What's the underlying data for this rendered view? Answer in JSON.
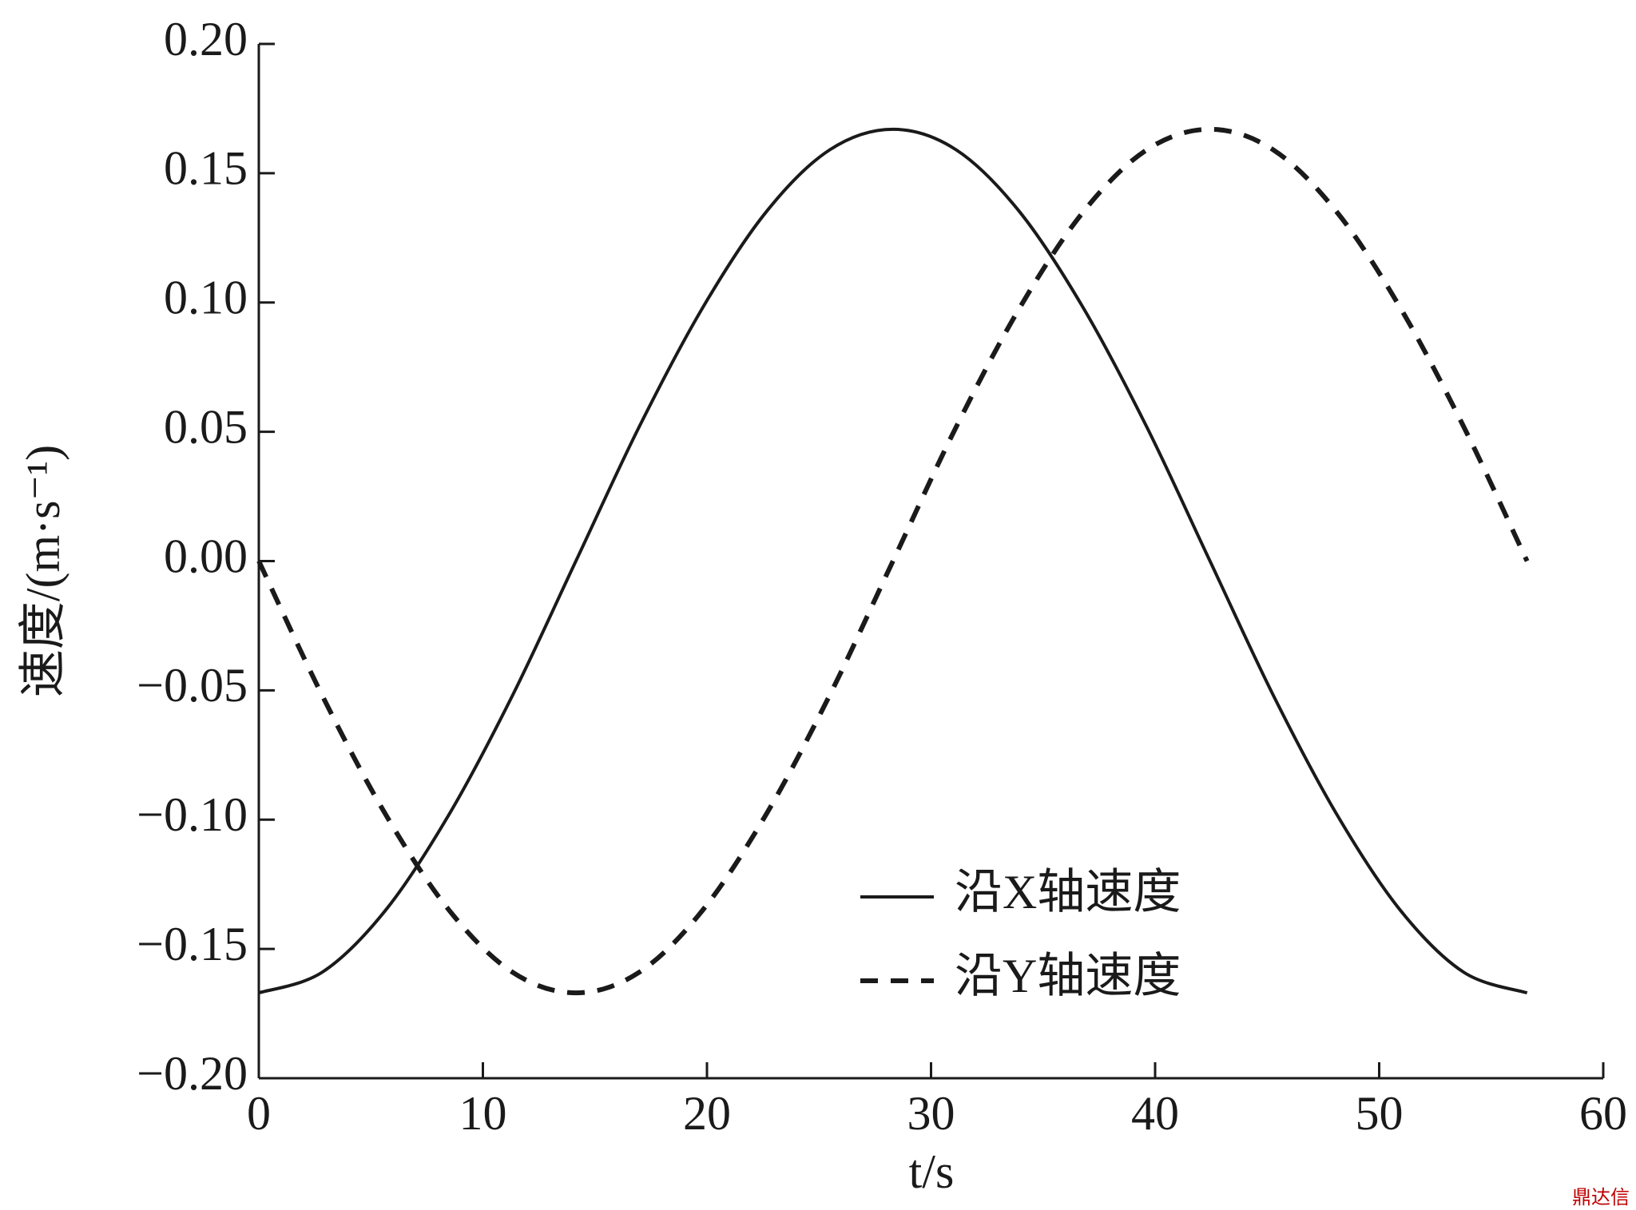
{
  "chart_data": {
    "type": "line",
    "x_label": "t/s",
    "y_label": "速度/(m·s⁻¹)",
    "x": [
      0,
      2.83,
      5.66,
      8.49,
      11.32,
      14.15,
      16.98,
      19.81,
      22.64,
      25.47,
      28.3,
      31.13,
      33.96,
      36.79,
      39.62,
      42.45,
      45.28,
      48.11,
      50.94,
      53.77,
      56.6
    ],
    "series": [
      {
        "name": "沿X轴速度",
        "color": "#1a1a1a",
        "dash": "solid",
        "values": [
          -0.167,
          -0.159,
          -0.135,
          -0.098,
          -0.052,
          0,
          0.052,
          0.098,
          0.135,
          0.159,
          0.167,
          0.159,
          0.135,
          0.098,
          0.052,
          0,
          -0.052,
          -0.098,
          -0.135,
          -0.159,
          -0.167
        ]
      },
      {
        "name": "沿Y轴速度",
        "color": "#1a1a1a",
        "dash": "dashed",
        "values": [
          0,
          -0.052,
          -0.098,
          -0.135,
          -0.159,
          -0.167,
          -0.159,
          -0.135,
          -0.098,
          -0.052,
          0,
          0.052,
          0.098,
          0.135,
          0.159,
          0.167,
          0.159,
          0.135,
          0.098,
          0.052,
          0
        ]
      }
    ],
    "xlim": [
      0,
      60
    ],
    "xticks": [
      0,
      10,
      20,
      30,
      40,
      50,
      60
    ],
    "ylim": [
      -0.2,
      0.2
    ],
    "yticks": [
      {
        "value": -0.2,
        "label": "−0.20"
      },
      {
        "value": -0.15,
        "label": "−0.15"
      },
      {
        "value": -0.1,
        "label": "−0.10"
      },
      {
        "value": -0.05,
        "label": "−0.05"
      },
      {
        "value": 0,
        "label": "0.00"
      },
      {
        "value": 0.05,
        "label": "0.05"
      },
      {
        "value": 0.1,
        "label": "0.10"
      },
      {
        "value": 0.15,
        "label": "0.15"
      },
      {
        "value": 0.2,
        "label": "0.20"
      }
    ],
    "grid": false,
    "legend": "lower-right",
    "watermark": "鼎达信"
  }
}
